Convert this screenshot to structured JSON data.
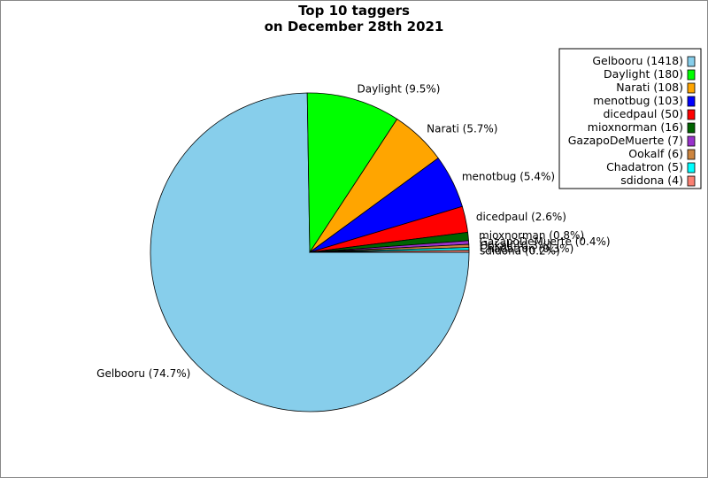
{
  "chart_data": {
    "type": "pie",
    "title_lines": [
      "Top 10 taggers",
      "on December 28th 2021"
    ],
    "slices": [
      {
        "name": "Gelbooru",
        "value": 1418,
        "percent_label": "Gelbooru (74.7%)",
        "legend_label": "Gelbooru (1418)",
        "color": "#87ceeb"
      },
      {
        "name": "Daylight",
        "value": 180,
        "percent_label": "Daylight (9.5%)",
        "legend_label": "Daylight (180)",
        "color": "#00ff00"
      },
      {
        "name": "Narati",
        "value": 108,
        "percent_label": "Narati (5.7%)",
        "legend_label": "Narati (108)",
        "color": "#ffa500"
      },
      {
        "name": "menotbug",
        "value": 103,
        "percent_label": "menotbug (5.4%)",
        "legend_label": "menotbug (103)",
        "color": "#0000ff"
      },
      {
        "name": "dicedpaul",
        "value": 50,
        "percent_label": "dicedpaul (2.6%)",
        "legend_label": "dicedpaul (50)",
        "color": "#ff0000"
      },
      {
        "name": "mioxnorman",
        "value": 16,
        "percent_label": "mioxnorman (0.8%)",
        "legend_label": "mioxnorman (16)",
        "color": "#006400"
      },
      {
        "name": "GazapoDeMuerte",
        "value": 7,
        "percent_label": "GazapoDeMuerte (0.4%)",
        "legend_label": "GazapoDeMuerte (7)",
        "color": "#9932cc"
      },
      {
        "name": "Ookalf",
        "value": 6,
        "percent_label": "Ookalf (0.3%)",
        "legend_label": "Ookalf (6)",
        "color": "#cd853f"
      },
      {
        "name": "Chadatron",
        "value": 5,
        "percent_label": "Chadatron (0.3%)",
        "legend_label": "Chadatron (5)",
        "color": "#00ffff"
      },
      {
        "name": "sdidona",
        "value": 4,
        "percent_label": "sdidona (0.2%)",
        "legend_label": "sdidona (4)",
        "color": "#fa8072"
      }
    ],
    "legend_position": "top-right"
  }
}
